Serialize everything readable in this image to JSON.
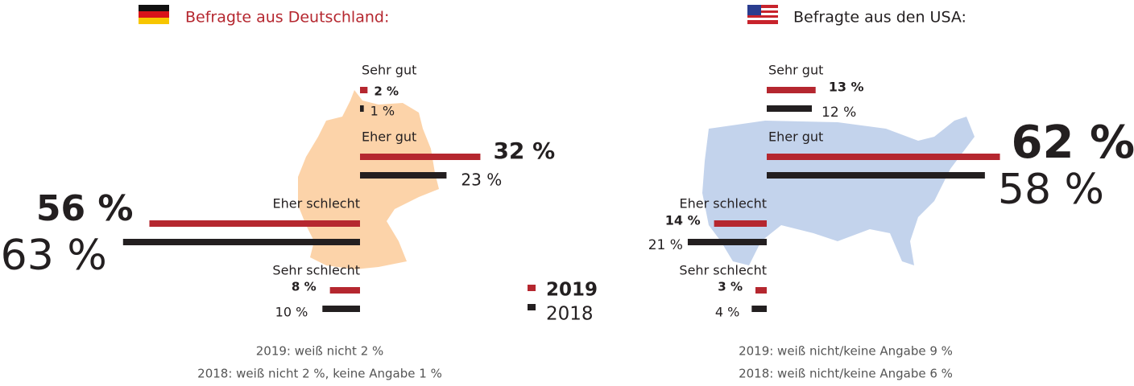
{
  "chart_data": [
    {
      "type": "diverging_bar",
      "title": "Befragte aus Deutschland:",
      "categories": [
        "Sehr gut",
        "Eher gut",
        "Eher schlecht",
        "Sehr schlecht"
      ],
      "series": [
        {
          "name": "2019",
          "color": "#b5272f",
          "values": [
            2,
            32,
            56,
            8
          ],
          "value_labels": [
            "2 %",
            "32 %",
            "56 %",
            "8 %"
          ]
        },
        {
          "name": "2018",
          "color": "#231f20",
          "values": [
            1,
            23,
            63,
            10
          ],
          "value_labels": [
            "1 %",
            "23 %",
            "63 %",
            "10 %"
          ]
        }
      ],
      "notes": [
        "2019: weiß nicht 2 %",
        "2018: weiß nicht 2 %, keine Angabe 1 %"
      ]
    },
    {
      "type": "diverging_bar",
      "title": "Befragte aus den USA:",
      "categories": [
        "Sehr gut",
        "Eher gut",
        "Eher schlecht",
        "Sehr schlecht"
      ],
      "series": [
        {
          "color": "#b5272f",
          "values": [
            13,
            62,
            14,
            3
          ],
          "value_labels": [
            "13 %",
            "62 %",
            "14 %",
            "3 %"
          ]
        },
        {
          "color": "#231f20",
          "values": [
            12,
            58,
            21,
            4
          ],
          "value_labels": [
            "12 %",
            "58 %",
            "21 %",
            "4 %"
          ]
        }
      ],
      "notes": [
        "2019: weiß nicht/keine Angabe 9 %",
        "2018: weiß nicht/keine Angabe 6 %"
      ]
    }
  ]
}
